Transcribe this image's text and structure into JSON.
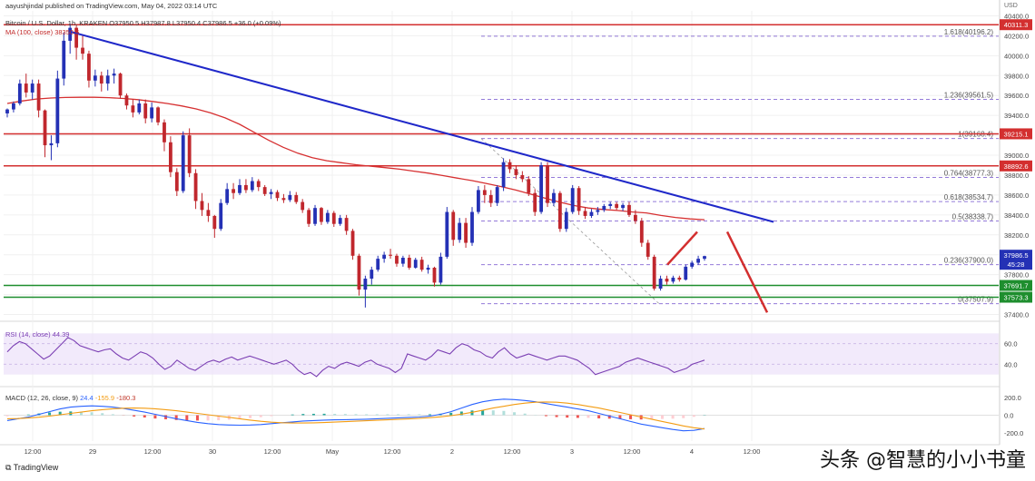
{
  "publisher_line": "aayushjindal published on TradingView.com, May 04, 2022 03:14 UTC",
  "symbol_line": "Bitcoin / U.S. Dollar, 1h, KRAKEN  O37950.5  H37987.8  L37950.4  C37986.5  +36.0 (+0.09%)",
  "ma_line": "MA (100, close)  38350.6",
  "rsi_line": "RSI (14, close)  44.39",
  "macd": {
    "label": "MACD (12, 26, close, 9)",
    "v1": "24.4",
    "v2": "-155.9",
    "v3": "-180.3"
  },
  "footer_brand": "TradingView",
  "watermark": "头条 @智慧的小小书童",
  "currency": "USD",
  "colors": {
    "up": "#2431b5",
    "down": "#c0272d",
    "ma": "#d63031",
    "trendline": "#1f28c9",
    "support": "#1e8e2e",
    "resistance": "#d32f2f",
    "rsi": "#7b3fb3",
    "macd": "#2962ff",
    "signal": "#f39c12",
    "fib": "#7a5ad0",
    "arrow": "#d32f2f"
  },
  "chart_data": [
    {
      "type": "candlestick",
      "title": "Bitcoin / U.S. Dollar, 1h, KRAKEN",
      "x_tick_labels": [
        "12:00",
        "29",
        "12:00",
        "30",
        "12:00",
        "May",
        "12:00",
        "2",
        "12:00",
        "3",
        "12:00",
        "4",
        "12:00"
      ],
      "y_tick_labels": [
        37400,
        37600,
        37800,
        38000,
        38200,
        38400,
        38600,
        38800,
        39000,
        39200,
        39400,
        39600,
        39800,
        40000,
        40200,
        40400
      ],
      "ylim": [
        37350,
        40450
      ],
      "candles": [
        [
          39420,
          39470,
          39380,
          39460
        ],
        [
          39460,
          39540,
          39430,
          39520
        ],
        [
          39520,
          39760,
          39500,
          39720
        ],
        [
          39720,
          39820,
          39580,
          39630
        ],
        [
          39630,
          39760,
          39560,
          39720
        ],
        [
          39720,
          39760,
          39380,
          39450
        ],
        [
          39450,
          39460,
          38980,
          39100
        ],
        [
          39100,
          39200,
          38950,
          39120
        ],
        [
          39120,
          39850,
          39080,
          39770
        ],
        [
          39770,
          40230,
          39700,
          40150
        ],
        [
          40150,
          40320,
          40020,
          40280
        ],
        [
          40280,
          40300,
          39960,
          40080
        ],
        [
          40080,
          40200,
          39960,
          40020
        ],
        [
          40020,
          40050,
          39680,
          39750
        ],
        [
          39750,
          39860,
          39690,
          39800
        ],
        [
          39800,
          39840,
          39640,
          39720
        ],
        [
          39720,
          39860,
          39650,
          39800
        ],
        [
          39800,
          39870,
          39720,
          39820
        ],
        [
          39820,
          39830,
          39570,
          39600
        ],
        [
          39600,
          39620,
          39460,
          39500
        ],
        [
          39500,
          39560,
          39380,
          39430
        ],
        [
          39430,
          39560,
          39410,
          39520
        ],
        [
          39520,
          39560,
          39320,
          39370
        ],
        [
          39370,
          39530,
          39330,
          39480
        ],
        [
          39480,
          39490,
          39300,
          39330
        ],
        [
          39330,
          39360,
          39040,
          39130
        ],
        [
          39130,
          39190,
          38780,
          38830
        ],
        [
          38830,
          38870,
          38590,
          38640
        ],
        [
          38640,
          39240,
          38620,
          39200
        ],
        [
          39200,
          39270,
          38780,
          38820
        ],
        [
          38820,
          38860,
          38460,
          38540
        ],
        [
          38540,
          38620,
          38390,
          38450
        ],
        [
          38450,
          38520,
          38330,
          38390
        ],
        [
          38390,
          38400,
          38170,
          38260
        ],
        [
          38260,
          38560,
          38240,
          38520
        ],
        [
          38520,
          38720,
          38500,
          38660
        ],
        [
          38660,
          38720,
          38560,
          38620
        ],
        [
          38620,
          38760,
          38600,
          38700
        ],
        [
          38700,
          38760,
          38620,
          38650
        ],
        [
          38650,
          38780,
          38630,
          38740
        ],
        [
          38740,
          38760,
          38640,
          38680
        ],
        [
          38680,
          38700,
          38590,
          38610
        ],
        [
          38610,
          38660,
          38560,
          38630
        ],
        [
          38630,
          38650,
          38540,
          38570
        ],
        [
          38570,
          38610,
          38520,
          38550
        ],
        [
          38550,
          38640,
          38530,
          38600
        ],
        [
          38600,
          38630,
          38510,
          38530
        ],
        [
          38530,
          38560,
          38420,
          38450
        ],
        [
          38450,
          38470,
          38280,
          38310
        ],
        [
          38310,
          38500,
          38290,
          38470
        ],
        [
          38470,
          38480,
          38300,
          38330
        ],
        [
          38330,
          38450,
          38310,
          38420
        ],
        [
          38420,
          38440,
          38280,
          38310
        ],
        [
          38310,
          38400,
          38290,
          38370
        ],
        [
          38370,
          38400,
          38200,
          38240
        ],
        [
          38240,
          38260,
          37950,
          37990
        ],
        [
          37990,
          38010,
          37590,
          37650
        ],
        [
          37650,
          37790,
          37470,
          37760
        ],
        [
          37760,
          37880,
          37700,
          37850
        ],
        [
          37850,
          37990,
          37830,
          37960
        ],
        [
          37960,
          38030,
          37920,
          38000
        ],
        [
          38000,
          38060,
          37960,
          37990
        ],
        [
          37990,
          38010,
          37880,
          37910
        ],
        [
          37910,
          37990,
          37880,
          37970
        ],
        [
          37970,
          38000,
          37850,
          37870
        ],
        [
          37870,
          37970,
          37860,
          37950
        ],
        [
          37950,
          37980,
          37830,
          37850
        ],
        [
          37850,
          37900,
          37810,
          37870
        ],
        [
          37870,
          37880,
          37680,
          37720
        ],
        [
          37720,
          38020,
          37700,
          37980
        ],
        [
          37980,
          38480,
          37960,
          38430
        ],
        [
          38430,
          38450,
          38090,
          38150
        ],
        [
          38150,
          38370,
          38120,
          38320
        ],
        [
          38320,
          38370,
          38070,
          38120
        ],
        [
          38120,
          38480,
          38090,
          38430
        ],
        [
          38430,
          38690,
          38410,
          38650
        ],
        [
          38650,
          38700,
          38520,
          38600
        ],
        [
          38600,
          38650,
          38480,
          38520
        ],
        [
          38520,
          38700,
          38490,
          38680
        ],
        [
          38680,
          38970,
          38640,
          38930
        ],
        [
          38930,
          38960,
          38820,
          38860
        ],
        [
          38860,
          38900,
          38760,
          38800
        ],
        [
          38800,
          38840,
          38730,
          38760
        ],
        [
          38760,
          38790,
          38590,
          38620
        ],
        [
          38620,
          38660,
          38390,
          38430
        ],
        [
          38430,
          38930,
          38410,
          38900
        ],
        [
          38900,
          38930,
          38480,
          38520
        ],
        [
          38520,
          38660,
          38490,
          38620
        ],
        [
          38620,
          38640,
          38230,
          38260
        ],
        [
          38260,
          38470,
          38230,
          38430
        ],
        [
          38430,
          38700,
          38410,
          38670
        ],
        [
          38670,
          38690,
          38400,
          38440
        ],
        [
          38440,
          38480,
          38360,
          38390
        ],
        [
          38390,
          38460,
          38370,
          38430
        ],
        [
          38430,
          38480,
          38400,
          38450
        ],
        [
          38450,
          38510,
          38430,
          38490
        ],
        [
          38490,
          38530,
          38460,
          38510
        ],
        [
          38510,
          38530,
          38450,
          38470
        ],
        [
          38470,
          38520,
          38440,
          38500
        ],
        [
          38500,
          38530,
          38380,
          38400
        ],
        [
          38400,
          38450,
          38310,
          38340
        ],
        [
          38340,
          38370,
          38080,
          38120
        ],
        [
          38120,
          38150,
          37950,
          37980
        ],
        [
          37980,
          38000,
          37640,
          37660
        ],
        [
          37660,
          37790,
          37640,
          37760
        ],
        [
          37760,
          37790,
          37700,
          37730
        ],
        [
          37730,
          37790,
          37710,
          37770
        ],
        [
          37770,
          37790,
          37730,
          37750
        ],
        [
          37750,
          37900,
          37740,
          37880
        ],
        [
          37880,
          37940,
          37860,
          37920
        ],
        [
          37920,
          37990,
          37900,
          37960
        ],
        [
          37960,
          37990,
          37940,
          37986.5
        ]
      ],
      "ma_100": [
        39520,
        39545,
        39565,
        39575,
        39580,
        39582,
        39582,
        39578,
        39570,
        39558,
        39540,
        39520,
        39495,
        39465,
        39425,
        39375,
        39310,
        39230,
        39150,
        39080,
        39020,
        38975,
        38945,
        38925,
        38905,
        38890,
        38875,
        38860,
        38840,
        38820,
        38795,
        38770,
        38745,
        38715,
        38685,
        38650,
        38610,
        38570,
        38530,
        38495,
        38470,
        38455,
        38445,
        38430,
        38420,
        38395,
        38375,
        38360,
        38352
      ],
      "trendline": {
        "x": [
          6,
          121
        ],
        "y": [
          40240,
          38330
        ]
      },
      "horizontal_levels": [
        {
          "value": 40311.3,
          "label": "40311.3",
          "kind": "resistance"
        },
        {
          "value": 39215.1,
          "label": "39215.1",
          "kind": "resistance"
        },
        {
          "value": 38892.6,
          "label": "38892.6",
          "kind": "resistance"
        },
        {
          "value": 37691.7,
          "label": "37691.7",
          "kind": "support"
        },
        {
          "value": 37573.3,
          "label": "37573.3",
          "kind": "support"
        }
      ],
      "fibonacci": [
        {
          "ratio_label": "1.618(40196.2)",
          "value": 40196.2
        },
        {
          "ratio_label": "1.236(39561.5)",
          "value": 39561.5
        },
        {
          "ratio_label": "1(39168.4)",
          "value": 39168.4
        },
        {
          "ratio_label": "0.764(38777.3)",
          "value": 38777.3
        },
        {
          "ratio_label": "0.618(38534.7)",
          "value": 38534.7
        },
        {
          "ratio_label": "0.5(38338.7)",
          "value": 38338.7
        },
        {
          "ratio_label": "0.236(37900.0)",
          "value": 37900.0
        },
        {
          "ratio_label": "0(37507.9)",
          "value": 37507.9
        }
      ],
      "current_price": {
        "value": 37986.5,
        "label": "37986.5",
        "countdown": "45:28"
      },
      "scenario_arrows": [
        {
          "from": [
            37900,
            115
          ],
          "to": [
            38230,
            118
          ]
        },
        {
          "from": [
            38230,
            121
          ],
          "to": [
            37420,
            125
          ]
        }
      ]
    },
    {
      "type": "line",
      "title": "RSI (14, close)",
      "y_tick_labels": [
        40.0,
        60.0
      ],
      "ylim": [
        20,
        80
      ],
      "band": [
        30,
        70
      ],
      "values": [
        52,
        58,
        62,
        60,
        55,
        50,
        45,
        48,
        54,
        60,
        66,
        63,
        58,
        56,
        54,
        52,
        54,
        55,
        50,
        46,
        44,
        48,
        52,
        50,
        46,
        40,
        35,
        38,
        44,
        40,
        36,
        34,
        38,
        42,
        44,
        42,
        45,
        47,
        44,
        46,
        48,
        46,
        44,
        42,
        40,
        42,
        44,
        40,
        34,
        30,
        32,
        28,
        34,
        38,
        36,
        40,
        42,
        40,
        38,
        42,
        44,
        40,
        38,
        36,
        32,
        36,
        50,
        48,
        46,
        44,
        48,
        54,
        52,
        50,
        56,
        60,
        58,
        54,
        52,
        48,
        46,
        52,
        56,
        50,
        46,
        48,
        50,
        48,
        46,
        44,
        46,
        48,
        48,
        46,
        44,
        40,
        36,
        30,
        32,
        34,
        36,
        38,
        42,
        44,
        46,
        44,
        42,
        40,
        38,
        36,
        32,
        34,
        36,
        40,
        42,
        44
      ]
    },
    {
      "type": "line",
      "title": "MACD (12, 26, close, 9)",
      "y_tick_labels": [
        200.0,
        0.0,
        -200.0
      ],
      "ylim": [
        -290,
        300
      ],
      "series": [
        {
          "name": "MACD",
          "values": [
            -60,
            -40,
            -20,
            10,
            40,
            70,
            90,
            100,
            105,
            100,
            90,
            75,
            55,
            35,
            10,
            -15,
            -40,
            -60,
            -80,
            -95,
            -105,
            -110,
            -112,
            -110,
            -105,
            -95,
            -85,
            -75,
            -65,
            -60,
            -55,
            -52,
            -50,
            -48,
            -45,
            -40,
            -35,
            -30,
            -25,
            -20,
            -10,
            10,
            40,
            80,
            120,
            150,
            170,
            180,
            175,
            165,
            150,
            130,
            110,
            90,
            70,
            50,
            20,
            -10,
            -40,
            -70,
            -100,
            -120,
            -140,
            -160,
            -175,
            -170,
            -150
          ]
        },
        {
          "name": "Signal",
          "values": [
            -40,
            -38,
            -32,
            -22,
            -10,
            5,
            20,
            35,
            50,
            62,
            72,
            78,
            80,
            78,
            72,
            62,
            50,
            35,
            20,
            5,
            -10,
            -25,
            -40,
            -55,
            -68,
            -78,
            -85,
            -88,
            -88,
            -86,
            -82,
            -77,
            -72,
            -67,
            -62,
            -57,
            -52,
            -47,
            -42,
            -36,
            -28,
            -18,
            -5,
            12,
            32,
            55,
            80,
            100,
            120,
            135,
            145,
            148,
            145,
            135,
            120,
            100,
            80,
            55,
            30,
            5,
            -20,
            -45,
            -70,
            -95,
            -120,
            -140,
            -155
          ]
        }
      ]
    }
  ]
}
